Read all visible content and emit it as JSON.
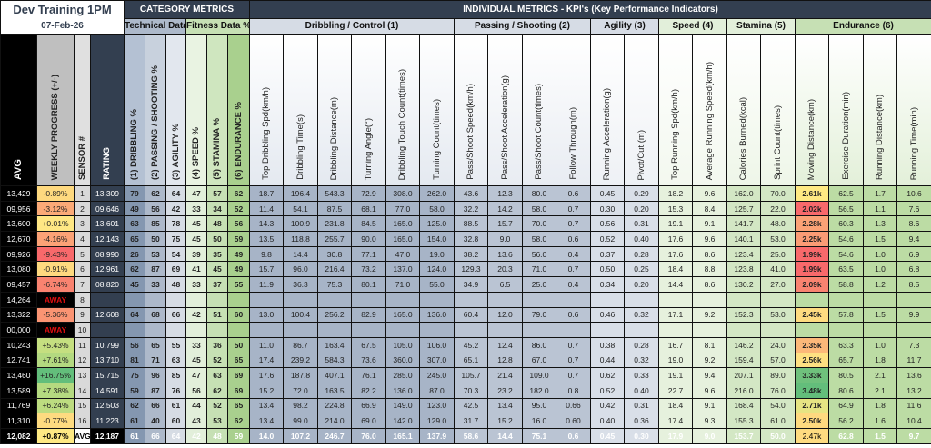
{
  "header": {
    "title": "Dev Training 1PM",
    "date": "07-Feb-26",
    "category_metrics": "CATEGORY METRICS",
    "individual_metrics": "INDIVIDUAL METRICS - KPI's (Key Performance Indicators)",
    "technical": "Technical Data %",
    "fitness": "Fitness Data %",
    "groups": [
      {
        "label": "Dribbling / Control (1)",
        "span": 6,
        "bg": "#d6dce5",
        "cell": "#a7b4c7",
        "head": "#e4e9f0"
      },
      {
        "label": "Passing / Shooting (2)",
        "span": 4,
        "bg": "#d6dce5",
        "cell": "#bac4d3",
        "head": "#e8ecf2"
      },
      {
        "label": "Agility (3)",
        "span": 2,
        "bg": "#d6dce5",
        "cell": "#d9dfe8",
        "head": "#eef1f5"
      },
      {
        "label": "Speed (4)",
        "span": 2,
        "bg": "#e2efda",
        "cell": "#e6f1dd",
        "head": "#f3f8ef"
      },
      {
        "label": "Stamina (5)",
        "span": 2,
        "bg": "#e2efda",
        "cell": "#d3e7c4",
        "head": "#eef6e8"
      },
      {
        "label": "Endurance (6)",
        "span": 4,
        "bg": "#c6e0b4",
        "cell": "#bcdca4",
        "head": "#e3f0d9"
      }
    ],
    "left_columns": [
      "AVG",
      "WEEKLY PROGRESS (+/-)",
      "SENSOR #",
      "RATING"
    ],
    "category_columns": [
      {
        "label": "(1) DRIBBLING %",
        "bg": "#8497b0",
        "head": "#b4c1d3"
      },
      {
        "label": "(2) PASSING / SHOOTING %",
        "bg": "#adb9ca",
        "head": "#c8d1dd"
      },
      {
        "label": "(3) AGILITY %",
        "bg": "#d6dce4",
        "head": "#e2e7ee"
      },
      {
        "label": "(4) SPEED %",
        "bg": "#e2efda",
        "head": "#e9f3e2"
      },
      {
        "label": "(5) STAMINA %",
        "bg": "#c6e0b4",
        "head": "#cfe6bf"
      },
      {
        "label": "(6) ENDURANCE %",
        "bg": "#a9d08e",
        "head": "#a9d08e"
      }
    ],
    "kpi_columns": [
      "Top Dribbling Spd(km/h)",
      "Dribbling Time(s)",
      "Dribbling Distance(m)",
      "Turning Angle(°)",
      "Dribbling Touch Count(times)",
      "Turning Count(times)",
      "Pass/Shoot Speed(km/h)",
      "Pass/Shoot Acceleration(g)",
      "Pass/Shoot Count(times)",
      "Follow Through(m)",
      "Running Acceleration(g)",
      "Pivot/Cut (m)",
      "Top Running Spd(km/h)",
      "Average Running Speed(km/h)",
      "Calories Burned(kcal)",
      "Sprint Count(times)",
      "Moving Distance(km)",
      "Exercise Duration(min)",
      "Running Distance(km)",
      "Running Time(min)"
    ]
  },
  "rows": [
    {
      "avg": "13,429",
      "progress": "-0.89%",
      "pbg": "#fed97f",
      "sensor": "1",
      "rating": "13,309",
      "cat": [
        "79",
        "62",
        "64",
        "47",
        "57",
        "62"
      ],
      "kpi": [
        "18.7",
        "196.4",
        "543.3",
        "72.9",
        "308.0",
        "262.0",
        "43.6",
        "12.3",
        "80.0",
        "0.6",
        "0.45",
        "0.29",
        "18.2",
        "9.6",
        "162.0",
        "70.0",
        "2.61k",
        "62.5",
        "1.7",
        "10.6"
      ],
      "dbg": "#fee983"
    },
    {
      "avg": "09,956",
      "progress": "-3.12%",
      "pbg": "#fbaa77",
      "sensor": "2",
      "rating": "09,646",
      "cat": [
        "49",
        "56",
        "42",
        "33",
        "34",
        "52"
      ],
      "kpi": [
        "11.4",
        "54.1",
        "87.5",
        "68.1",
        "77.0",
        "58.0",
        "32.2",
        "14.2",
        "58.0",
        "0.7",
        "0.30",
        "0.20",
        "15.3",
        "8.4",
        "125.7",
        "22.0",
        "2.02k",
        "56.5",
        "1.1",
        "7.6"
      ],
      "dbg": "#f8696b"
    },
    {
      "avg": "13,600",
      "progress": "+0.01%",
      "pbg": "#ffe784",
      "sensor": "3",
      "rating": "13,601",
      "cat": [
        "63",
        "85",
        "78",
        "45",
        "48",
        "56"
      ],
      "kpi": [
        "14.3",
        "100.9",
        "231.8",
        "84.5",
        "165.0",
        "125.0",
        "88.5",
        "15.7",
        "70.0",
        "0.7",
        "0.56",
        "0.31",
        "19.1",
        "9.1",
        "141.7",
        "48.0",
        "2.28k",
        "60.3",
        "1.3",
        "8.6"
      ],
      "dbg": "#fba276"
    },
    {
      "avg": "12,670",
      "progress": "-4.16%",
      "pbg": "#fba276",
      "sensor": "4",
      "rating": "12,143",
      "cat": [
        "65",
        "50",
        "75",
        "45",
        "50",
        "59"
      ],
      "kpi": [
        "13.5",
        "118.8",
        "255.7",
        "90.0",
        "165.0",
        "154.0",
        "32.8",
        "9.0",
        "58.0",
        "0.6",
        "0.52",
        "0.40",
        "17.6",
        "9.6",
        "140.1",
        "53.0",
        "2.25k",
        "54.6",
        "1.5",
        "9.4"
      ],
      "dbg": "#fb9b75"
    },
    {
      "avg": "09,926",
      "progress": "-9.43%",
      "pbg": "#f8696b",
      "sensor": "5",
      "rating": "08,990",
      "cat": [
        "26",
        "53",
        "54",
        "39",
        "35",
        "49"
      ],
      "kpi": [
        "9.8",
        "14.4",
        "30.8",
        "77.1",
        "47.0",
        "19.0",
        "38.2",
        "13.6",
        "56.0",
        "0.4",
        "0.37",
        "0.28",
        "17.6",
        "8.6",
        "123.4",
        "25.0",
        "1.99k",
        "54.6",
        "1.0",
        "6.9"
      ],
      "dbg": "#f8696b"
    },
    {
      "avg": "13,080",
      "progress": "-0.91%",
      "pbg": "#fed97f",
      "sensor": "6",
      "rating": "12,961",
      "cat": [
        "62",
        "87",
        "69",
        "41",
        "45",
        "49"
      ],
      "kpi": [
        "15.7",
        "96.0",
        "216.4",
        "73.2",
        "137.0",
        "124.0",
        "129.3",
        "20.3",
        "71.0",
        "0.7",
        "0.50",
        "0.25",
        "18.4",
        "8.8",
        "123.8",
        "41.0",
        "1.99k",
        "63.5",
        "1.0",
        "6.8"
      ],
      "dbg": "#f8696b"
    },
    {
      "avg": "09,457",
      "progress": "-6.74%",
      "pbg": "#f98370",
      "sensor": "7",
      "rating": "08,820",
      "cat": [
        "45",
        "33",
        "48",
        "33",
        "37",
        "55"
      ],
      "kpi": [
        "11.9",
        "36.3",
        "75.3",
        "80.1",
        "71.0",
        "55.0",
        "34.9",
        "6.5",
        "25.0",
        "0.4",
        "0.34",
        "0.20",
        "14.4",
        "8.6",
        "130.2",
        "27.0",
        "2.09k",
        "58.8",
        "1.2",
        "8.5"
      ],
      "dbg": "#f98370"
    },
    {
      "avg": "14,264",
      "progress": "AWAY",
      "away": true,
      "sensor": "8",
      "rating": "",
      "cat": [
        "",
        "",
        "",
        "",
        "",
        ""
      ],
      "kpi": [
        "",
        "",
        "",
        "",
        "",
        "",
        "",
        "",
        "",
        "",
        "",
        "",
        "",
        "",
        "",
        "",
        "",
        "",
        "",
        ""
      ]
    },
    {
      "avg": "13,322",
      "progress": "-5.36%",
      "pbg": "#fa9473",
      "sensor": "9",
      "rating": "12,608",
      "cat": [
        "64",
        "68",
        "66",
        "42",
        "51",
        "60"
      ],
      "kpi": [
        "13.0",
        "100.4",
        "256.2",
        "82.9",
        "165.0",
        "136.0",
        "60.4",
        "12.0",
        "79.0",
        "0.6",
        "0.46",
        "0.32",
        "17.1",
        "9.2",
        "152.3",
        "53.0",
        "2.45k",
        "57.8",
        "1.5",
        "9.9"
      ],
      "dbg": "#fedb80"
    },
    {
      "avg": "00,000",
      "progress": "AWAY",
      "away": true,
      "sensor": "10",
      "rating": "",
      "cat": [
        "",
        "",
        "",
        "",
        "",
        ""
      ],
      "kpi": [
        "",
        "",
        "",
        "",
        "",
        "",
        "",
        "",
        "",
        "",
        "",
        "",
        "",
        "",
        "",
        "",
        "",
        "",
        "",
        ""
      ]
    },
    {
      "avg": "10,243",
      "progress": "+5.43%",
      "pbg": "#c5df80",
      "sensor": "11",
      "rating": "10,799",
      "cat": [
        "56",
        "65",
        "55",
        "33",
        "36",
        "50"
      ],
      "kpi": [
        "11.0",
        "86.7",
        "163.4",
        "67.5",
        "105.0",
        "106.0",
        "45.2",
        "12.4",
        "86.0",
        "0.7",
        "0.38",
        "0.28",
        "16.7",
        "8.1",
        "146.2",
        "24.0",
        "2.35k",
        "63.3",
        "1.0",
        "7.3"
      ],
      "dbg": "#fcb879"
    },
    {
      "avg": "12,741",
      "progress": "+7.61%",
      "pbg": "#b3d980",
      "sensor": "12",
      "rating": "13,710",
      "cat": [
        "81",
        "71",
        "63",
        "45",
        "52",
        "65"
      ],
      "kpi": [
        "17.4",
        "239.2",
        "584.3",
        "73.6",
        "360.0",
        "307.0",
        "65.1",
        "12.8",
        "67.0",
        "0.7",
        "0.44",
        "0.32",
        "19.0",
        "9.2",
        "159.4",
        "57.0",
        "2.56k",
        "65.7",
        "1.8",
        "11.7"
      ],
      "dbg": "#fee082"
    },
    {
      "avg": "13,460",
      "progress": "+16.75%",
      "pbg": "#63be7b",
      "sensor": "13",
      "rating": "15,715",
      "cat": [
        "75",
        "96",
        "85",
        "47",
        "63",
        "69"
      ],
      "kpi": [
        "17.6",
        "187.8",
        "407.1",
        "76.1",
        "285.0",
        "245.0",
        "105.7",
        "21.4",
        "109.0",
        "0.7",
        "0.62",
        "0.33",
        "19.1",
        "9.4",
        "207.1",
        "89.0",
        "3.33k",
        "80.5",
        "2.1",
        "13.6"
      ],
      "dbg": "#6fc17c"
    },
    {
      "avg": "13,589",
      "progress": "+7.38%",
      "pbg": "#b5da80",
      "sensor": "14",
      "rating": "14,591",
      "cat": [
        "59",
        "87",
        "76",
        "56",
        "62",
        "69"
      ],
      "kpi": [
        "15.2",
        "72.0",
        "163.5",
        "82.2",
        "136.0",
        "87.0",
        "70.3",
        "23.2",
        "182.0",
        "0.8",
        "0.52",
        "0.40",
        "22.7",
        "9.6",
        "216.0",
        "76.0",
        "3.48k",
        "80.6",
        "2.1",
        "13.2"
      ],
      "dbg": "#63be7b"
    },
    {
      "avg": "11,769",
      "progress": "+6.24%",
      "pbg": "#bddc80",
      "sensor": "15",
      "rating": "12,503",
      "cat": [
        "62",
        "66",
        "61",
        "44",
        "52",
        "65"
      ],
      "kpi": [
        "13.4",
        "98.2",
        "224.8",
        "66.9",
        "149.0",
        "123.0",
        "42.5",
        "13.4",
        "95.0",
        "0.66",
        "0.42",
        "0.31",
        "18.4",
        "9.1",
        "168.4",
        "54.0",
        "2.71k",
        "64.9",
        "1.8",
        "11.6"
      ],
      "dbg": "#e6e483"
    },
    {
      "avg": "11,310",
      "progress": "-0.77%",
      "pbg": "#fedb80",
      "sensor": "16",
      "rating": "11,223",
      "cat": [
        "61",
        "40",
        "60",
        "43",
        "53",
        "62"
      ],
      "kpi": [
        "13.4",
        "99.0",
        "214.0",
        "69.0",
        "142.0",
        "129.0",
        "31.7",
        "15.2",
        "16.0",
        "0.60",
        "0.40",
        "0.36",
        "17.4",
        "9.3",
        "155.3",
        "61.0",
        "2.50k",
        "56.2",
        "1.6",
        "10.4"
      ],
      "dbg": "#fed97f"
    }
  ],
  "average_row": {
    "avg": "12,082",
    "progress": "+0.87%",
    "pbg": "#fee983",
    "sensor": "AVG-",
    "rating": "12,187",
    "cat": [
      "61",
      "66",
      "64",
      "42",
      "48",
      "59"
    ],
    "kpi": [
      "14.0",
      "107.2",
      "246.7",
      "76.0",
      "165.1",
      "137.9",
      "58.6",
      "14.4",
      "75.1",
      "0.6",
      "0.45",
      "0.30",
      "17.9",
      "9.0",
      "153.7",
      "50.0",
      "2.47k",
      "62.8",
      "1.5",
      "9.7"
    ],
    "dbg": "#fedb80"
  }
}
